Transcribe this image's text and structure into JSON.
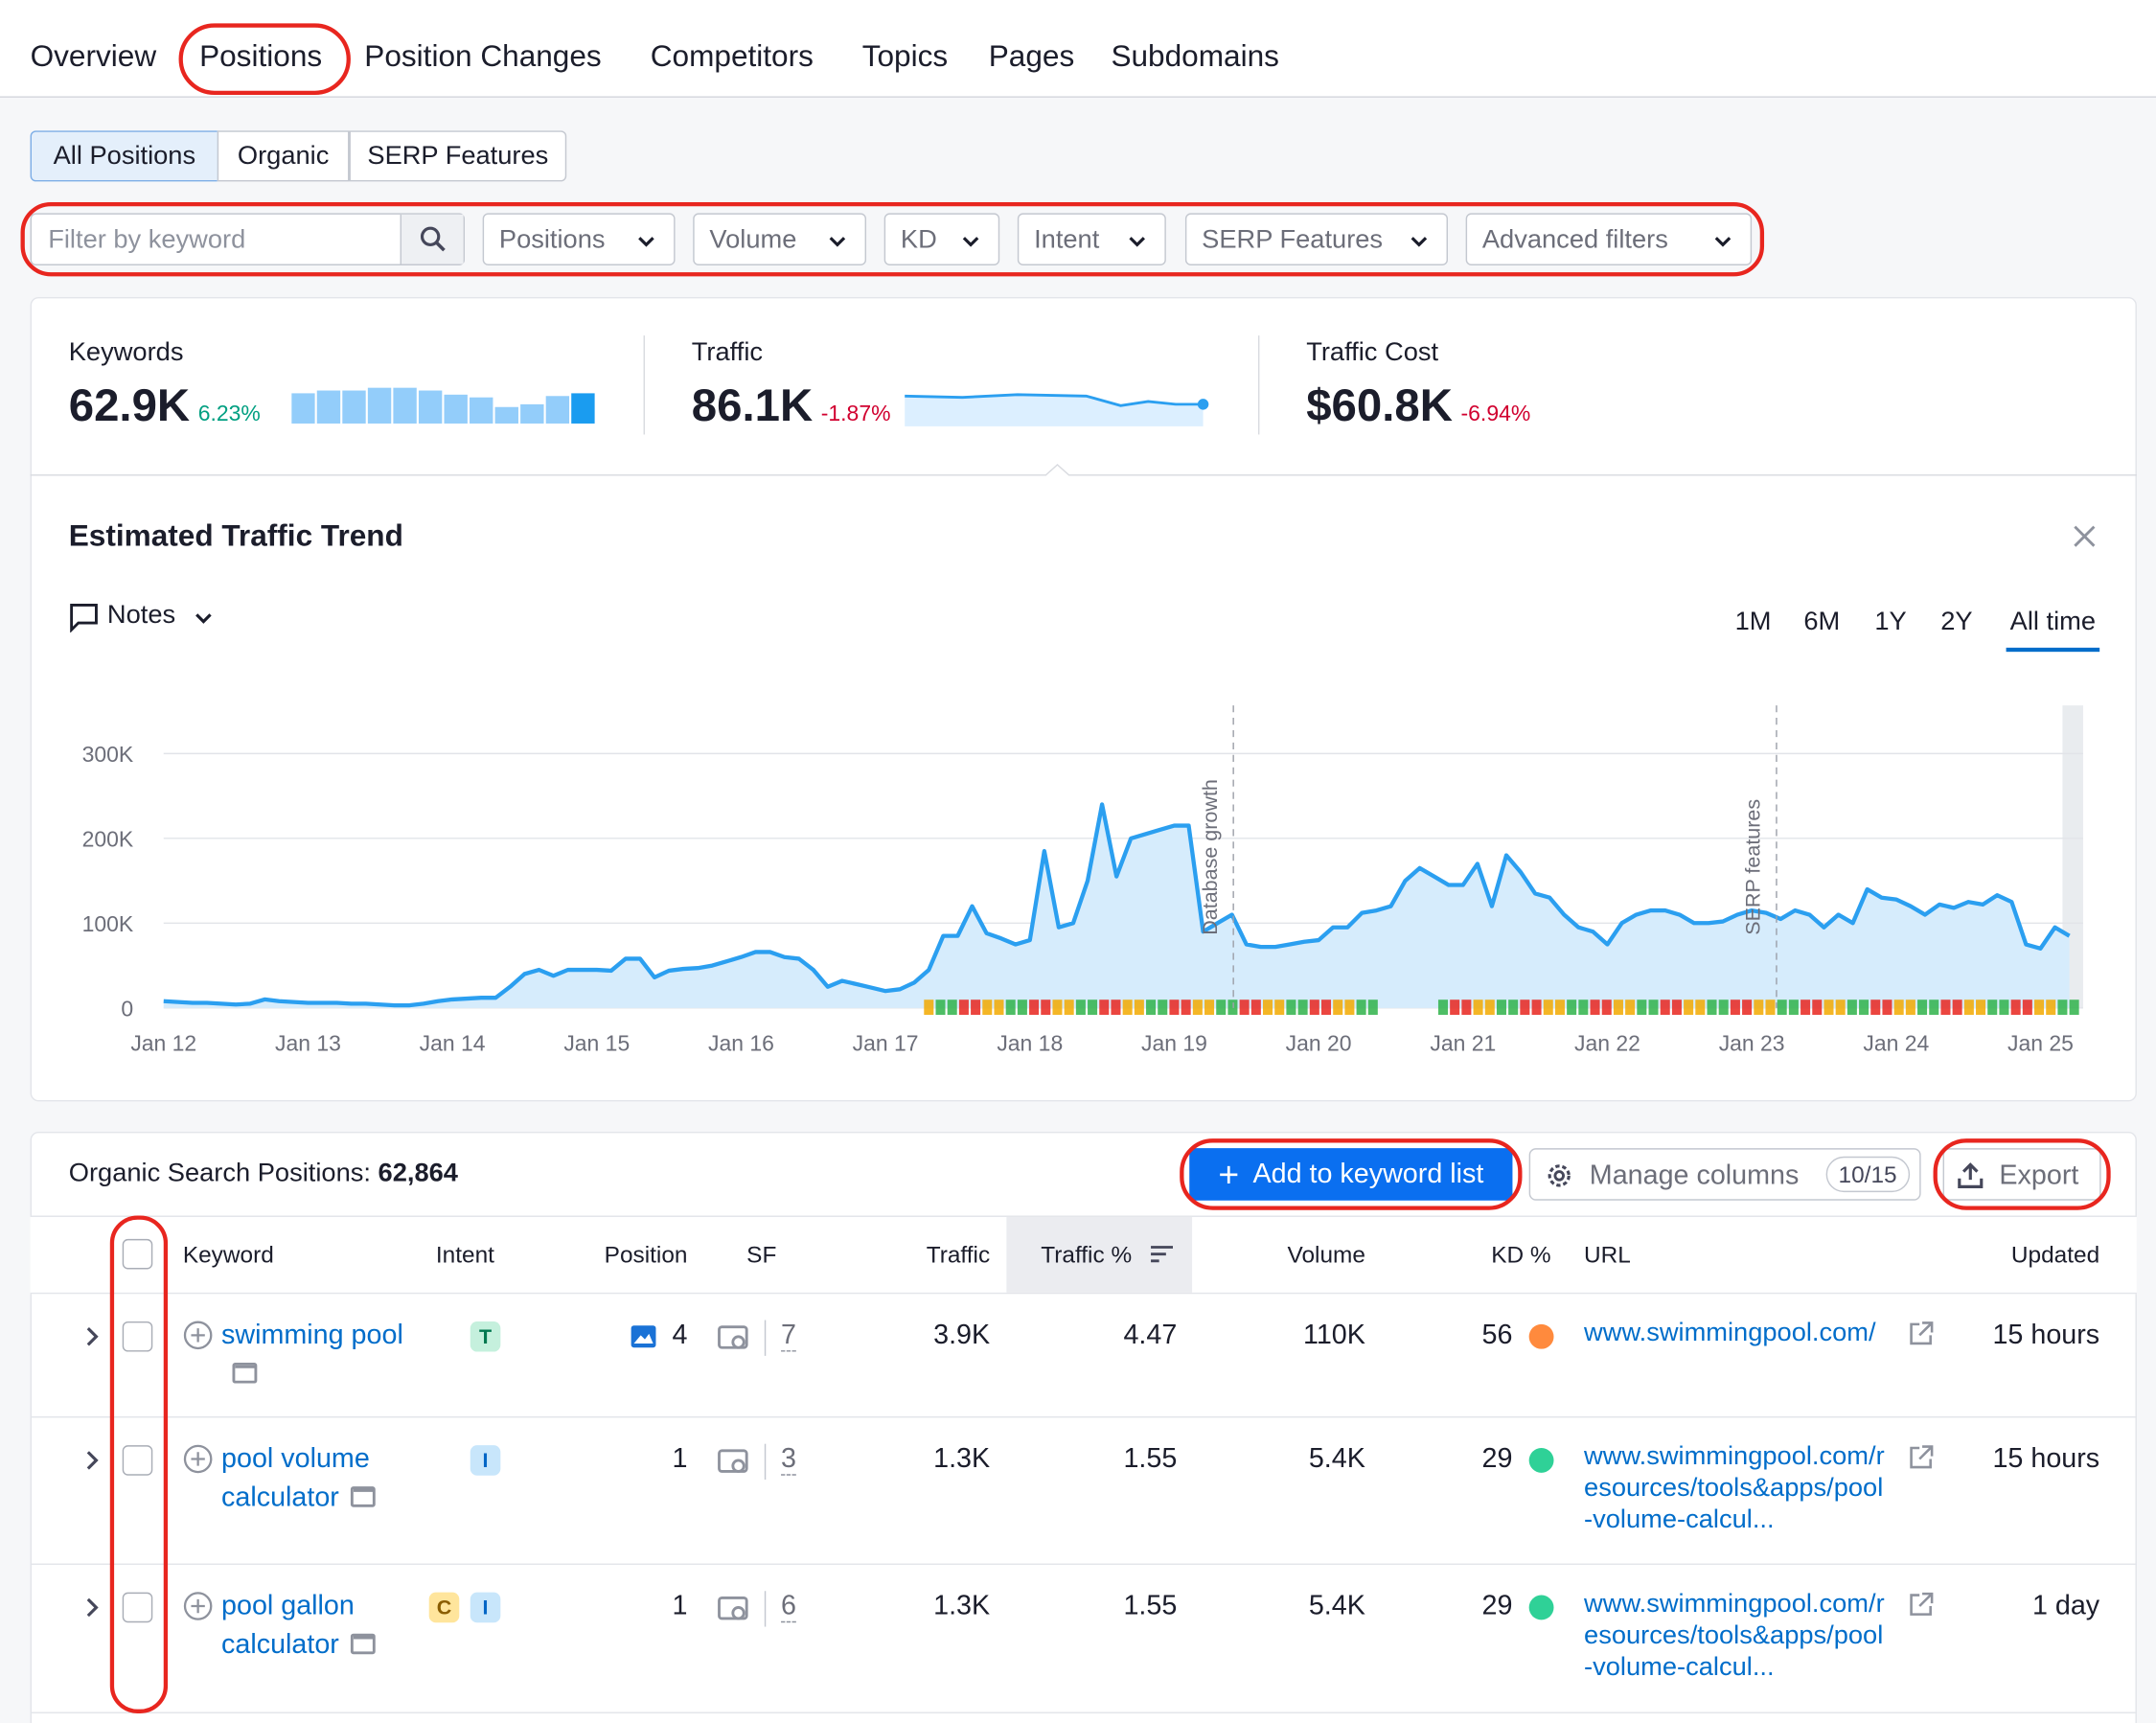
{
  "tabs": [
    "Overview",
    "Positions",
    "Position Changes",
    "Competitors",
    "Topics",
    "Pages",
    "Subdomains"
  ],
  "subtabs": [
    "All Positions",
    "Organic",
    "SERP Features"
  ],
  "filters": {
    "placeholder": "Filter by keyword",
    "dropdowns": [
      "Positions",
      "Volume",
      "KD",
      "Intent",
      "SERP Features",
      "Advanced filters"
    ]
  },
  "metrics": [
    {
      "label": "Keywords",
      "value": "62.9K",
      "change": "6.23%"
    },
    {
      "label": "Traffic",
      "value": "86.1K",
      "change": "-1.87%"
    },
    {
      "label": "Traffic Cost",
      "value": "$60.8K",
      "change": "-6.94%"
    }
  ],
  "notes": "Notes",
  "ranges": [
    "1M",
    "6M",
    "1Y",
    "2Y",
    "All time"
  ],
  "chart_data": {
    "type": "line",
    "title": "Estimated Traffic Trend",
    "color": "#2b9ff0",
    "area_color": "#d6ecfc",
    "categories": [
      "Jan 12",
      null,
      null,
      null,
      null,
      null,
      null,
      null,
      null,
      null,
      "Jan 13",
      null,
      null,
      null,
      null,
      null,
      null,
      null,
      null,
      null,
      "Jan 14",
      null,
      null,
      null,
      null,
      null,
      null,
      null,
      null,
      null,
      "Jan 15",
      null,
      null,
      null,
      null,
      null,
      null,
      null,
      null,
      null,
      "Jan 16",
      null,
      null,
      null,
      null,
      null,
      null,
      null,
      null,
      null,
      "Jan 17",
      null,
      null,
      null,
      null,
      null,
      null,
      null,
      null,
      null,
      "Jan 18",
      null,
      null,
      null,
      null,
      null,
      null,
      null,
      null,
      null,
      "Jan 19",
      null,
      null,
      null,
      null,
      null,
      null,
      null,
      null,
      null,
      "Jan 20",
      null,
      null,
      null,
      null,
      null,
      null,
      null,
      null,
      null,
      "Jan 21",
      null,
      null,
      null,
      null,
      null,
      null,
      null,
      null,
      null,
      "Jan 22",
      null,
      null,
      null,
      null,
      null,
      null,
      null,
      null,
      null,
      "Jan 23",
      null,
      null,
      null,
      null,
      null,
      null,
      null,
      null,
      null,
      "Jan 24",
      null,
      null,
      null,
      null,
      null,
      null,
      null,
      null,
      null,
      "Jan 25",
      null,
      null
    ],
    "values": [
      8000,
      7000,
      6000,
      6000,
      5000,
      4000,
      5000,
      10000,
      8000,
      7000,
      6000,
      6000,
      6000,
      5000,
      5000,
      4000,
      3000,
      3000,
      5000,
      8000,
      10000,
      11000,
      12000,
      12000,
      25000,
      40000,
      45000,
      38000,
      45000,
      45000,
      45000,
      44000,
      58000,
      58000,
      36000,
      44000,
      46000,
      47000,
      50000,
      55000,
      60000,
      66000,
      66000,
      60000,
      58000,
      45000,
      25000,
      32000,
      28000,
      24000,
      20000,
      22000,
      30000,
      45000,
      85000,
      85000,
      120000,
      88000,
      82000,
      75000,
      80000,
      185000,
      95000,
      100000,
      150000,
      240000,
      155000,
      200000,
      205000,
      210000,
      215000,
      215000,
      90000,
      100000,
      110000,
      75000,
      72000,
      72000,
      75000,
      78000,
      80000,
      95000,
      95000,
      112000,
      115000,
      120000,
      150000,
      165000,
      155000,
      145000,
      145000,
      170000,
      120000,
      180000,
      160000,
      135000,
      130000,
      110000,
      95000,
      90000,
      75000,
      100000,
      110000,
      115000,
      115000,
      110000,
      100000,
      100000,
      102000,
      110000,
      115000,
      112000,
      105000,
      115000,
      110000,
      95000,
      110000,
      100000,
      140000,
      130000,
      128000,
      120000,
      110000,
      122000,
      118000,
      125000,
      122000,
      133000,
      125000,
      75000,
      70000,
      95000,
      85000
    ],
    "ylim": [
      0,
      300000
    ],
    "yticks": [
      {
        "value": 0,
        "label": "0"
      },
      {
        "value": 100000,
        "label": "100K"
      },
      {
        "value": 200000,
        "label": "200K"
      },
      {
        "value": 300000,
        "label": "300K"
      }
    ],
    "grid": true,
    "annotations": [
      {
        "text": "Database growth"
      },
      {
        "text": "SERP features"
      }
    ]
  },
  "table": {
    "caption": "Organic Search Positions:",
    "total": "62,864",
    "buttons": {
      "add": "Add to keyword list",
      "manage": "Manage columns",
      "manage_count": "10/15",
      "export": "Export"
    },
    "columns": [
      "Keyword",
      "Intent",
      "Position",
      "SF",
      "Traffic",
      "Traffic %",
      "Volume",
      "KD %",
      "URL",
      "Updated"
    ],
    "rows": [
      {
        "keyword": "swimming pool",
        "intents": [
          "T"
        ],
        "position": 4,
        "sf": 7,
        "traffic": "3.9K",
        "traffic_pct": 4.47,
        "volume": "110K",
        "kd": 56,
        "kd_color": "#ff8a3d",
        "url": "www.swimmingpool.com/",
        "updated": "15 hours"
      },
      {
        "keyword": "pool volume calculator",
        "intents": [
          "I"
        ],
        "position": 1,
        "sf": 3,
        "traffic": "1.3K",
        "traffic_pct": 1.55,
        "volume": "5.4K",
        "kd": 29,
        "kd_color": "#2fd197",
        "url": "www.swimmingpool.com/resources/tools&apps/pool-volume-calcul...",
        "updated": "15 hours"
      },
      {
        "keyword": "pool gallon calculator",
        "intents": [
          "C",
          "I"
        ],
        "position": 1,
        "sf": 6,
        "traffic": "1.3K",
        "traffic_pct": 1.55,
        "volume": "5.4K",
        "kd": 29,
        "kd_color": "#2fd197",
        "url": "www.swimmingpool.com/resources/tools&apps/pool-volume-calcul...",
        "updated": "1 day"
      }
    ]
  }
}
